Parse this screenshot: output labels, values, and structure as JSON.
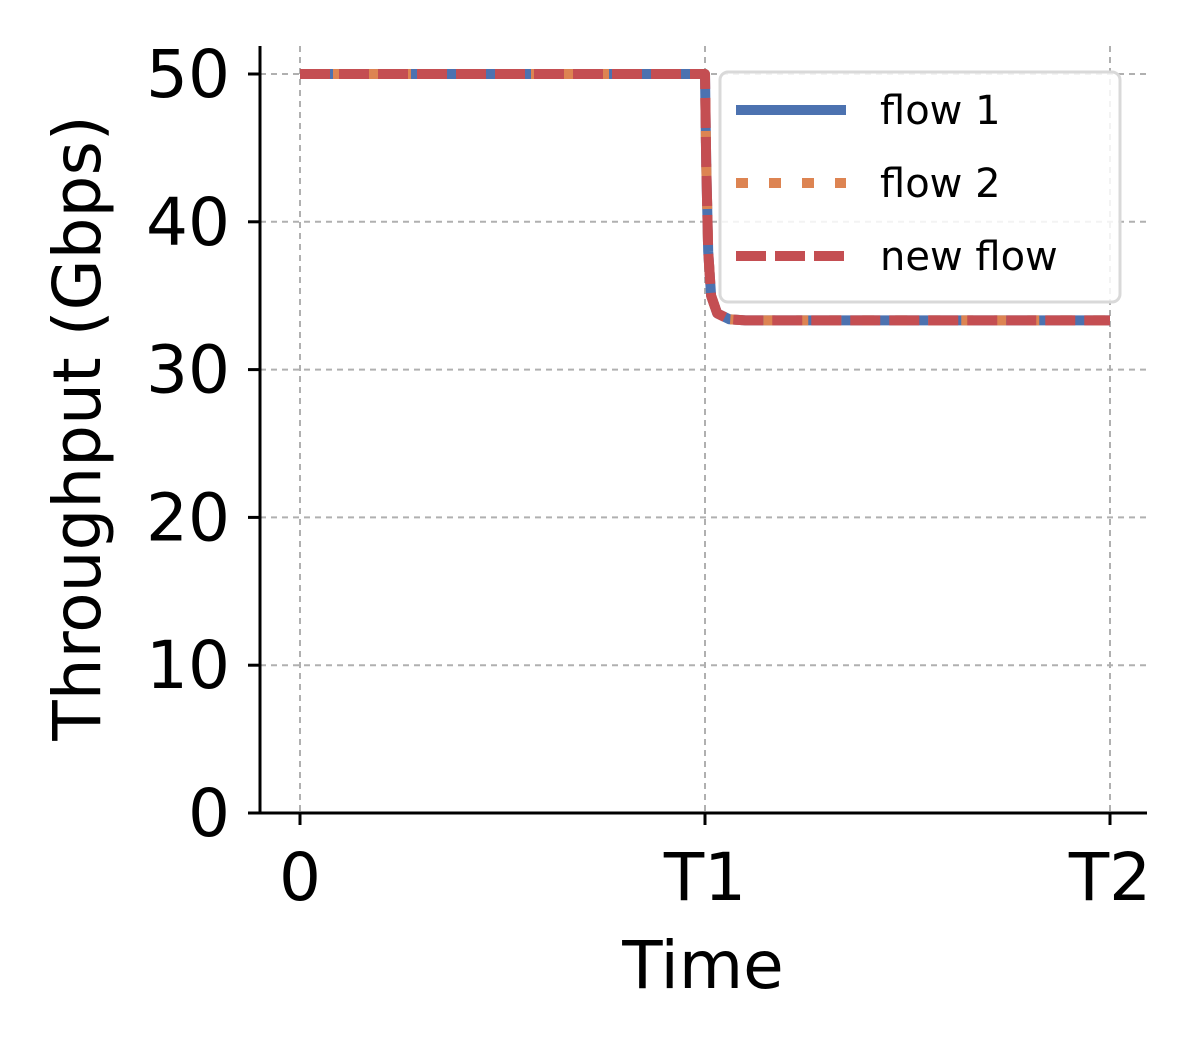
{
  "chart_data": {
    "type": "line",
    "title": "",
    "xlabel": "Time",
    "ylabel": "Throughput (Gbps)",
    "x_ticks": [
      {
        "value": 0,
        "label": "0"
      },
      {
        "value": 1,
        "label": "T1"
      },
      {
        "value": 2,
        "label": "T2"
      }
    ],
    "y_ticks": [
      {
        "value": 0,
        "label": "0"
      },
      {
        "value": 10,
        "label": "10"
      },
      {
        "value": 20,
        "label": "20"
      },
      {
        "value": 30,
        "label": "30"
      },
      {
        "value": 40,
        "label": "40"
      },
      {
        "value": 50,
        "label": "50"
      }
    ],
    "xlim": [
      -0.1,
      2.09
    ],
    "ylim": [
      0,
      52
    ],
    "grid": true,
    "legend_position": "top-right",
    "series": [
      {
        "name": "flow 1",
        "color": "#4c72b0",
        "style": "solid",
        "x": [
          0,
          1.0,
          1.003,
          1.008,
          1.015,
          1.03,
          1.06,
          1.1,
          1.3,
          2.0
        ],
        "y": [
          50,
          50,
          44,
          38,
          35,
          33.8,
          33.4,
          33.33,
          33.33,
          33.33
        ]
      },
      {
        "name": "flow 2",
        "color": "#dd8452",
        "style": "dotted",
        "x": [
          0,
          1.0,
          1.003,
          1.008,
          1.015,
          1.03,
          1.06,
          1.1,
          1.3,
          2.0
        ],
        "y": [
          50,
          50,
          44,
          38,
          35,
          33.8,
          33.4,
          33.33,
          33.33,
          33.33
        ]
      },
      {
        "name": "new flow",
        "color": "#c44e52",
        "style": "dashed",
        "x": [
          0,
          1.0,
          1.003,
          1.008,
          1.015,
          1.03,
          1.06,
          1.1,
          1.3,
          2.0
        ],
        "y": [
          50,
          50,
          44,
          38,
          35,
          33.8,
          33.4,
          33.33,
          33.33,
          33.33
        ]
      }
    ]
  }
}
